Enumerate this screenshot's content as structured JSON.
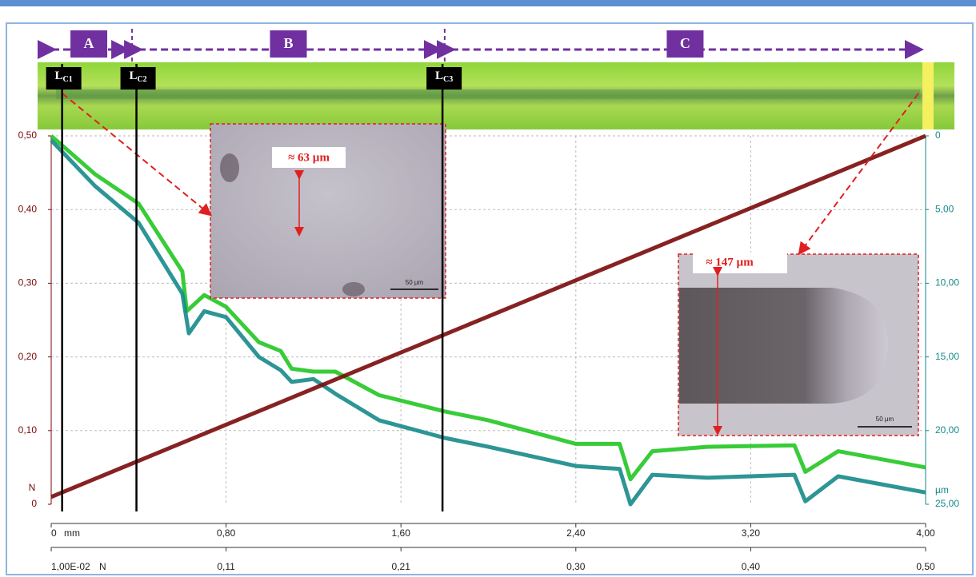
{
  "chart_data": {
    "type": "line",
    "x_unit": "mm",
    "y_unit": "N",
    "y2_unit": "µm",
    "x2_unit": "N",
    "xlim": [
      0,
      4.0
    ],
    "xticks": [
      0,
      {
        "value": 0.8,
        "label": "0,80"
      },
      {
        "value": 1.6,
        "label": "1,60"
      },
      {
        "value": 2.4,
        "label": "2,40"
      },
      {
        "value": 3.2,
        "label": "3,20"
      },
      {
        "value": 4.0,
        "label": "4,00"
      }
    ],
    "x2lim": [
      0.01,
      0.5
    ],
    "x2ticks": [
      {
        "value": 0.01,
        "label": "1,00E-02"
      },
      {
        "value": 0.108,
        "label": "0,11"
      },
      {
        "value": 0.206,
        "label": "0,21"
      },
      {
        "value": 0.304,
        "label": "0,30"
      },
      {
        "value": 0.402,
        "label": "0,40"
      },
      {
        "value": 0.5,
        "label": "0,50"
      }
    ],
    "ylim": [
      0,
      0.5
    ],
    "yticks": [
      0,
      {
        "value": 0.1,
        "label": "0,10"
      },
      {
        "value": 0.2,
        "label": "0,20"
      },
      {
        "value": 0.3,
        "label": "0,30"
      },
      {
        "value": 0.4,
        "label": "0,40"
      },
      {
        "value": 0.5,
        "label": "0,50"
      }
    ],
    "y2lim": [
      0,
      25
    ],
    "y2ticks": [
      0,
      {
        "value": 5,
        "label": "5,00"
      },
      {
        "value": 10,
        "label": "10,00"
      },
      {
        "value": 15,
        "label": "15,00"
      },
      {
        "value": 20,
        "label": "20,00"
      },
      {
        "value": 25,
        "label": "25,00"
      }
    ],
    "y2_inverted": true,
    "grid": true,
    "series": [
      {
        "color": "#22c622",
        "axis": "y2",
        "x": [
          0,
          0.2,
          0.4,
          0.6,
          0.62,
          0.7,
          0.8,
          0.95,
          1.05,
          1.1,
          1.2,
          1.3,
          1.5,
          1.8,
          2.0,
          2.4,
          2.6,
          2.65,
          2.75,
          3.0,
          3.4,
          3.45,
          3.6,
          4.0
        ],
        "values": [
          0,
          2.6,
          4.6,
          9.2,
          11.9,
          10.8,
          11.6,
          14.0,
          14.6,
          15.8,
          16.0,
          16.0,
          17.6,
          18.7,
          19.3,
          20.9,
          20.9,
          23.3,
          21.4,
          21.1,
          21.0,
          22.8,
          21.4,
          22.5
        ]
      },
      {
        "color": "#168a8a",
        "axis": "y2",
        "x": [
          0,
          0.2,
          0.4,
          0.6,
          0.63,
          0.7,
          0.8,
          0.95,
          1.05,
          1.1,
          1.2,
          1.3,
          1.5,
          1.8,
          2.0,
          2.4,
          2.6,
          2.65,
          2.75,
          3.0,
          3.4,
          3.45,
          3.6,
          4.0
        ],
        "values": [
          0.3,
          3.4,
          5.9,
          10.7,
          13.4,
          11.9,
          12.3,
          15.0,
          15.9,
          16.7,
          16.5,
          17.5,
          19.3,
          20.5,
          21.1,
          22.4,
          22.6,
          25,
          23.0,
          23.2,
          23.0,
          24.8,
          23.1,
          24.2
        ]
      },
      {
        "color": "#7a0a0a",
        "axis": "y",
        "x": [
          0,
          4.0
        ],
        "values": [
          0.01,
          0.5
        ]
      }
    ],
    "regions": [
      {
        "label": "A",
        "x": [
          0,
          0.37
        ]
      },
      {
        "label": "B",
        "x": [
          0.37,
          1.8
        ]
      },
      {
        "label": "C",
        "x": [
          1.8,
          4.0
        ]
      }
    ],
    "critical_loads": [
      {
        "label": "L",
        "sub": "C1",
        "x": 0.05
      },
      {
        "label": "L",
        "sub": "C2",
        "x": 0.39
      },
      {
        "label": "L",
        "sub": "C3",
        "x": 1.79
      }
    ],
    "annotations": {
      "width_1": "≈ 63 µm",
      "width_2": "≈ 147 µm",
      "scale_1": "50 µm",
      "scale_2": "50 µm"
    }
  }
}
